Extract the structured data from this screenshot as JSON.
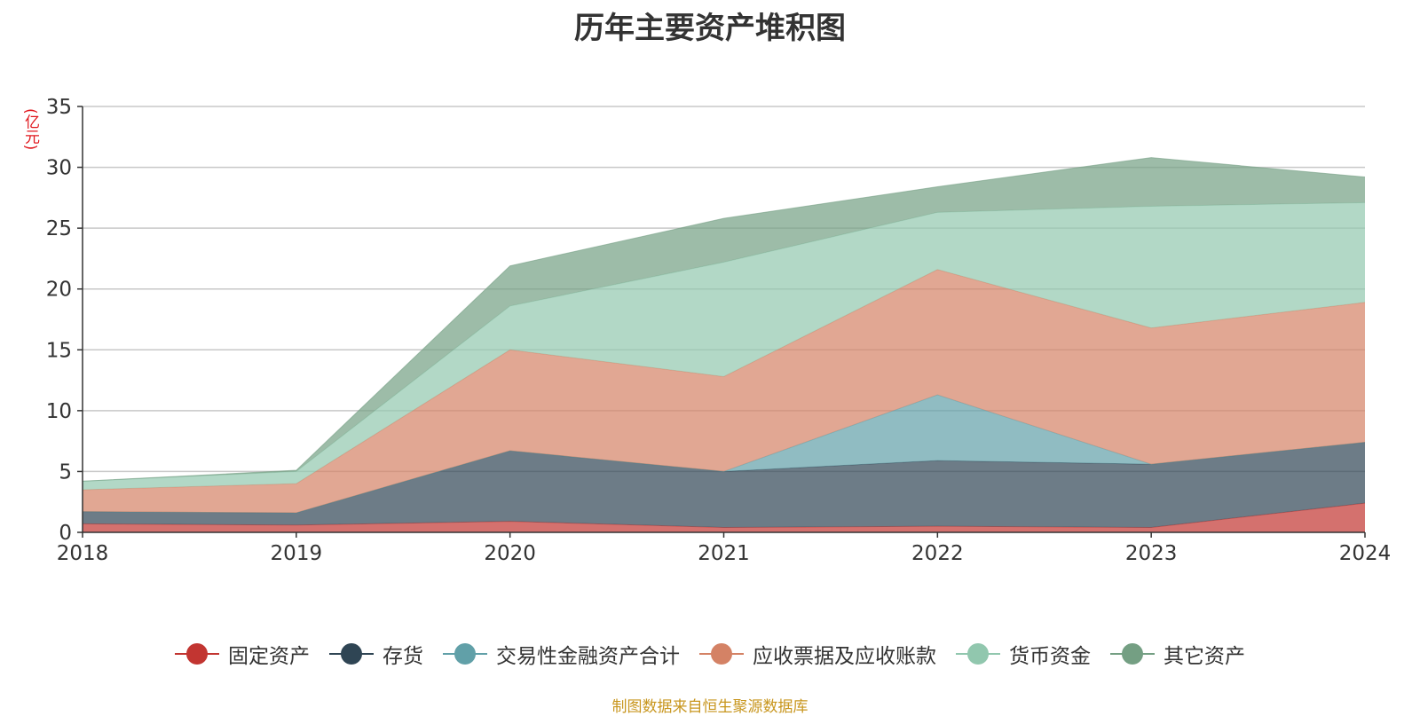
{
  "chart_data": {
    "type": "area",
    "stacked": true,
    "title": "历年主要资产堆积图",
    "ylabel": "(亿元)",
    "xlabel": "",
    "x": [
      "2018",
      "2019",
      "2020",
      "2021",
      "2022",
      "2023",
      "2024"
    ],
    "ylim": [
      0,
      35
    ],
    "yticks": [
      0,
      5,
      10,
      15,
      20,
      25,
      30,
      35
    ],
    "grid": true,
    "legend_position": "bottom",
    "series": [
      {
        "name": "固定资产",
        "color": "#c23531",
        "values": [
          0.7,
          0.6,
          0.9,
          0.4,
          0.5,
          0.4,
          2.4
        ]
      },
      {
        "name": "存货",
        "color": "#2f4554",
        "values": [
          1.0,
          1.0,
          5.8,
          4.6,
          5.4,
          5.2,
          5.0
        ]
      },
      {
        "name": "交易性金融资产合计",
        "color": "#61a0a8",
        "values": [
          0.0,
          0.0,
          0.0,
          0.0,
          5.4,
          0.0,
          0.0
        ]
      },
      {
        "name": "应收票据及应收账款",
        "color": "#d48265",
        "values": [
          1.8,
          2.4,
          8.3,
          7.8,
          10.3,
          11.2,
          11.5
        ]
      },
      {
        "name": "货币资金",
        "color": "#91c7ae",
        "values": [
          0.7,
          1.0,
          3.6,
          9.4,
          4.7,
          10.0,
          8.2
        ]
      },
      {
        "name": "其它资产",
        "color": "#749f83",
        "values": [
          0.0,
          0.1,
          3.3,
          3.6,
          2.1,
          4.0,
          2.1
        ]
      }
    ]
  },
  "footer": {
    "source": "制图数据来自恒生聚源数据库"
  }
}
